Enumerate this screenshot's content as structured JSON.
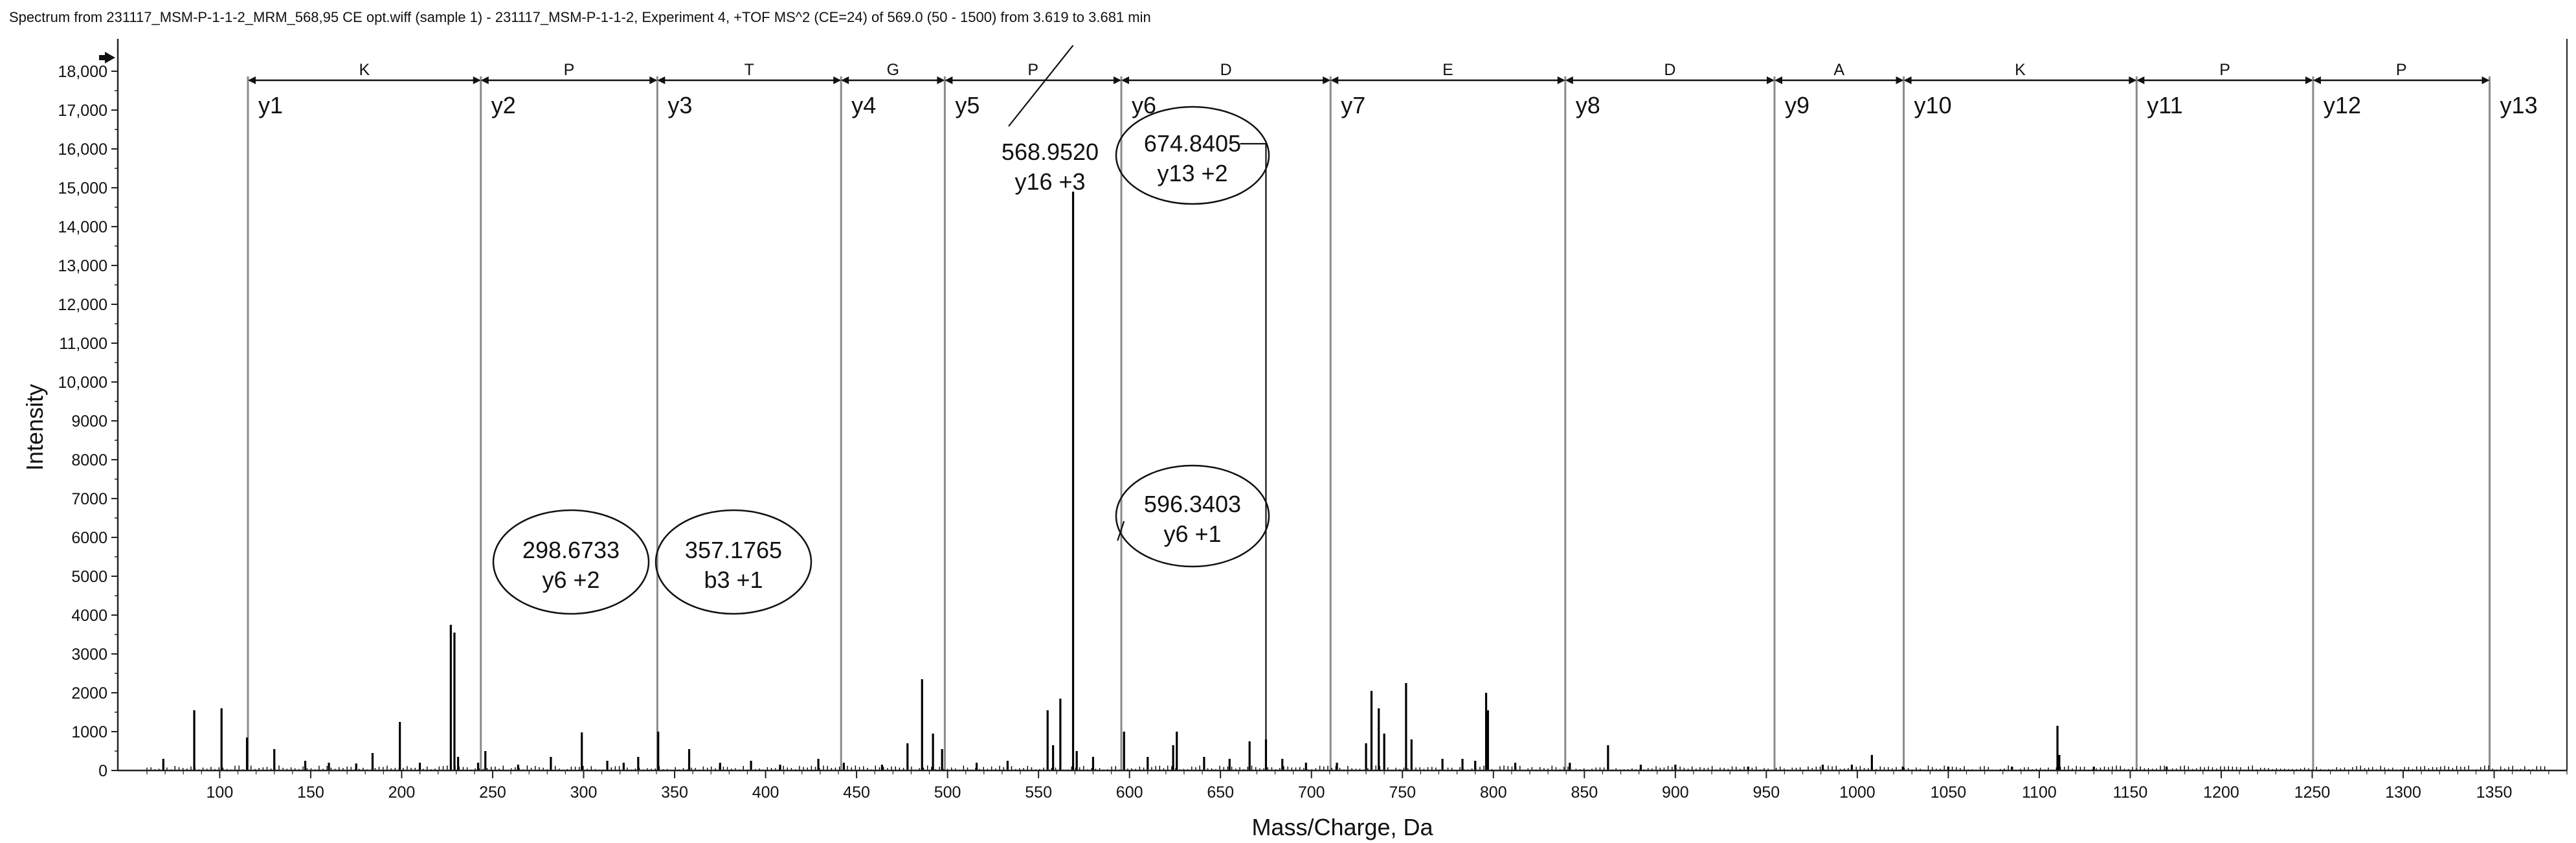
{
  "header": {
    "title": "Spectrum from 231117_MSM-P-1-1-2_MRM_568,95 CE opt.wiff (sample 1) - 231117_MSM-P-1-1-2, Experiment 4, +TOF MS^2 (CE=24) of 569.0 (50 - 1500) from 3.619 to 3.681 min"
  },
  "chart_data": {
    "type": "bar",
    "title": "",
    "xlabel": "Mass/Charge, Da",
    "ylabel": "Intensity",
    "xlim": [
      44,
      1390
    ],
    "ylim": [
      0,
      18500
    ],
    "x_ticks": [
      {
        "value": 100,
        "label": "100"
      },
      {
        "value": 150,
        "label": "150"
      },
      {
        "value": 200,
        "label": "200"
      },
      {
        "value": 250,
        "label": "250"
      },
      {
        "value": 300,
        "label": "300"
      },
      {
        "value": 350,
        "label": "350"
      },
      {
        "value": 400,
        "label": "400"
      },
      {
        "value": 450,
        "label": "450"
      },
      {
        "value": 500,
        "label": "500"
      },
      {
        "value": 550,
        "label": "550"
      },
      {
        "value": 600,
        "label": "600"
      },
      {
        "value": 650,
        "label": "650"
      },
      {
        "value": 700,
        "label": "700"
      },
      {
        "value": 750,
        "label": "750"
      },
      {
        "value": 800,
        "label": "800"
      },
      {
        "value": 850,
        "label": "850"
      },
      {
        "value": 900,
        "label": "900"
      },
      {
        "value": 950,
        "label": "950"
      },
      {
        "value": 1000,
        "label": "1000"
      },
      {
        "value": 1050,
        "label": "1050"
      },
      {
        "value": 1100,
        "label": "1100"
      },
      {
        "value": 1150,
        "label": "1150"
      },
      {
        "value": 1200,
        "label": "1200"
      },
      {
        "value": 1250,
        "label": "1250"
      },
      {
        "value": 1300,
        "label": "1300"
      },
      {
        "value": 1350,
        "label": "1350"
      }
    ],
    "y_ticks": [
      {
        "value": 0,
        "label": "0"
      },
      {
        "value": 1000,
        "label": "1000"
      },
      {
        "value": 2000,
        "label": "2000"
      },
      {
        "value": 3000,
        "label": "3000"
      },
      {
        "value": 4000,
        "label": "4000"
      },
      {
        "value": 5000,
        "label": "5000"
      },
      {
        "value": 6000,
        "label": "6000"
      },
      {
        "value": 7000,
        "label": "7000"
      },
      {
        "value": 8000,
        "label": "8000"
      },
      {
        "value": 9000,
        "label": "9000"
      },
      {
        "value": 10000,
        "label": "10,000"
      },
      {
        "value": 11000,
        "label": "11,000"
      },
      {
        "value": 12000,
        "label": "12,000"
      },
      {
        "value": 13000,
        "label": "13,000"
      },
      {
        "value": 14000,
        "label": "14,000"
      },
      {
        "value": 15000,
        "label": "15,000"
      },
      {
        "value": 16000,
        "label": "16,000"
      },
      {
        "value": 17000,
        "label": "17,000"
      },
      {
        "value": 18000,
        "label": "18,000"
      }
    ],
    "peaks": [
      [
        69,
        300
      ],
      [
        86,
        1550
      ],
      [
        101,
        1600
      ],
      [
        115,
        850
      ],
      [
        130,
        550
      ],
      [
        147,
        250
      ],
      [
        160,
        200
      ],
      [
        175,
        180
      ],
      [
        184,
        450
      ],
      [
        199,
        1250
      ],
      [
        210,
        200
      ],
      [
        227,
        3750
      ],
      [
        229,
        3550
      ],
      [
        231,
        350
      ],
      [
        242,
        200
      ],
      [
        246,
        500
      ],
      [
        264,
        150
      ],
      [
        282,
        350
      ],
      [
        299,
        980
      ],
      [
        313,
        250
      ],
      [
        322,
        200
      ],
      [
        330,
        350
      ],
      [
        341,
        1000
      ],
      [
        358,
        550
      ],
      [
        375,
        200
      ],
      [
        392,
        250
      ],
      [
        408,
        150
      ],
      [
        429,
        300
      ],
      [
        443,
        200
      ],
      [
        464,
        150
      ],
      [
        478,
        700
      ],
      [
        486,
        2350
      ],
      [
        492,
        950
      ],
      [
        497,
        550
      ],
      [
        516,
        200
      ],
      [
        533,
        250
      ],
      [
        555,
        1550
      ],
      [
        558,
        650
      ],
      [
        562,
        1850
      ],
      [
        569,
        14900
      ],
      [
        571,
        500
      ],
      [
        580,
        350
      ],
      [
        597,
        1000
      ],
      [
        610,
        350
      ],
      [
        624,
        650
      ],
      [
        626,
        1000
      ],
      [
        641,
        350
      ],
      [
        655,
        300
      ],
      [
        666,
        750
      ],
      [
        675,
        800
      ],
      [
        684,
        300
      ],
      [
        697,
        200
      ],
      [
        714,
        200
      ],
      [
        730,
        700
      ],
      [
        733,
        2050
      ],
      [
        737,
        1600
      ],
      [
        740,
        950
      ],
      [
        752,
        2250
      ],
      [
        755,
        800
      ],
      [
        772,
        300
      ],
      [
        783,
        300
      ],
      [
        790,
        250
      ],
      [
        796,
        2000
      ],
      [
        797,
        1550
      ],
      [
        812,
        200
      ],
      [
        842,
        200
      ],
      [
        863,
        650
      ],
      [
        881,
        150
      ],
      [
        900,
        150
      ],
      [
        940,
        100
      ],
      [
        981,
        150
      ],
      [
        997,
        150
      ],
      [
        1008,
        400
      ],
      [
        1025,
        100
      ],
      [
        1050,
        100
      ],
      [
        1085,
        100
      ],
      [
        1110,
        1150
      ],
      [
        1111,
        400
      ],
      [
        1130,
        100
      ],
      [
        1170,
        100
      ]
    ],
    "ion_ladder": {
      "residues": [
        "K",
        "P",
        "T",
        "G",
        "P",
        "D",
        "E",
        "D",
        "A",
        "K",
        "P",
        "P"
      ],
      "boundaries": [
        {
          "mz": 115.5,
          "label": "y1"
        },
        {
          "mz": 243.5,
          "label": "y2"
        },
        {
          "mz": 340.5,
          "label": "y3"
        },
        {
          "mz": 441.5,
          "label": "y4"
        },
        {
          "mz": 498.5,
          "label": "y5"
        },
        {
          "mz": 595.5,
          "label": "y6"
        },
        {
          "mz": 710.5,
          "label": "y7"
        },
        {
          "mz": 839.5,
          "label": "y8"
        },
        {
          "mz": 954.5,
          "label": "y9"
        },
        {
          "mz": 1025.5,
          "label": "y10"
        },
        {
          "mz": 1153.5,
          "label": "y11"
        },
        {
          "mz": 1250.5,
          "label": "y12"
        },
        {
          "mz": 1347.5,
          "label": "y13"
        }
      ]
    },
    "annotations": [
      {
        "mz": 298.6733,
        "line1": "298.6733",
        "line2": "y6 +2",
        "circled": true
      },
      {
        "mz": 357.1765,
        "line1": "357.1765",
        "line2": "b3 +1",
        "circled": true
      },
      {
        "mz": 568.952,
        "line1": "568.9520",
        "line2": "y16 +3",
        "circled": false
      },
      {
        "mz": 674.8405,
        "line1": "674.8405",
        "line2": "y13 +2",
        "circled": true
      },
      {
        "mz": 596.3403,
        "line1": "596.3403",
        "line2": "y6 +1",
        "circled": true
      }
    ]
  },
  "colors": {
    "axis": "#222222",
    "peak": "#000000",
    "ladder_line": "#8a8a8a",
    "ladder_bar": "#111111"
  }
}
